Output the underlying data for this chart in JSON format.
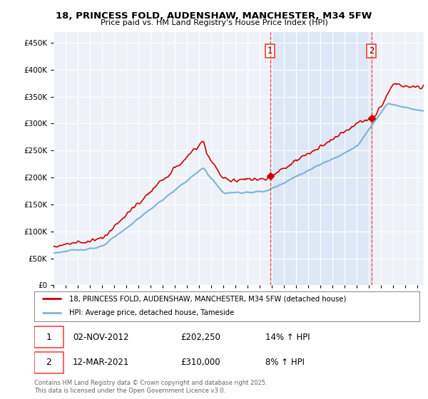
{
  "title_line1": "18, PRINCESS FOLD, AUDENSHAW, MANCHESTER, M34 5FW",
  "title_line2": "Price paid vs. HM Land Registry's House Price Index (HPI)",
  "ytick_values": [
    0,
    50000,
    100000,
    150000,
    200000,
    250000,
    300000,
    350000,
    400000,
    450000
  ],
  "ylim": [
    0,
    470000
  ],
  "xlim_start": 1995.0,
  "xlim_end": 2025.5,
  "sale1_x": 2012.84,
  "sale1_y": 202250,
  "sale1_label": "1",
  "sale1_date": "02-NOV-2012",
  "sale1_price": "£202,250",
  "sale1_hpi": "14% ↑ HPI",
  "sale2_x": 2021.19,
  "sale2_y": 310000,
  "sale2_label": "2",
  "sale2_date": "12-MAR-2021",
  "sale2_price": "£310,000",
  "sale2_hpi": "8% ↑ HPI",
  "legend_line1": "18, PRINCESS FOLD, AUDENSHAW, MANCHESTER, M34 5FW (detached house)",
  "legend_line2": "HPI: Average price, detached house, Tameside",
  "footer": "Contains HM Land Registry data © Crown copyright and database right 2025.\nThis data is licensed under the Open Government Licence v3.0.",
  "hpi_color": "#7ab4d8",
  "price_color": "#cc0000",
  "dashed_line_color": "#ff4444",
  "background_plot": "#eef2f8",
  "background_shade": "#dce8f5",
  "grid_color": "#ffffff"
}
